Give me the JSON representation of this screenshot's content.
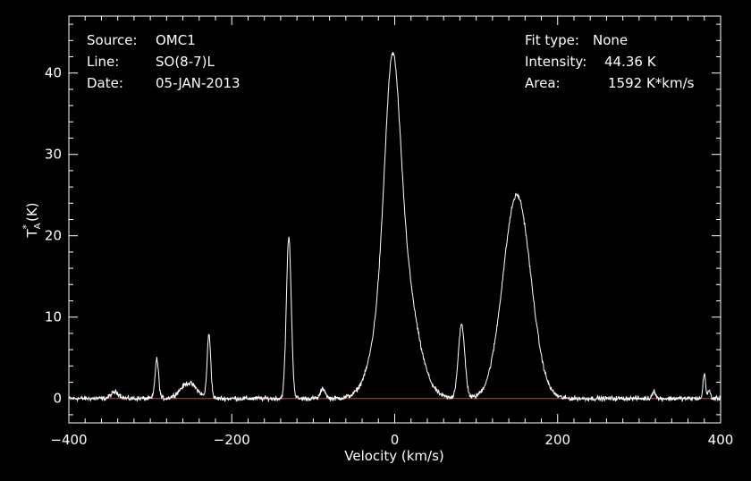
{
  "header": {
    "source_label": "Source:",
    "source_value": "OMC1",
    "line_label": "Line:",
    "line_value": "SO(8-7)L",
    "date_label": "Date:",
    "date_value": "05-JAN-2013",
    "fit_label": "Fit type:",
    "fit_value": "None",
    "intensity_label": "Intensity:",
    "intensity_value": "44.36 K",
    "area_label": "Area:",
    "area_value": "1592 K*km/s"
  },
  "chart_data": {
    "type": "line",
    "xlabel": "Velocity (km/s)",
    "ylabel": "T_A^* (K)",
    "xlim": [
      -400,
      400
    ],
    "ylim": [
      -3,
      47
    ],
    "xticks": [
      -400,
      -200,
      0,
      200,
      400
    ],
    "yticks": [
      0,
      10,
      20,
      30,
      40
    ],
    "baseline": 0,
    "colors": {
      "background": "#000000",
      "axes": "#ffffff",
      "spectrum": "#ffffff",
      "baseline": "#ff2a2a"
    },
    "components": [
      {
        "center": -343,
        "height": 0.8,
        "sigma": 5
      },
      {
        "center": -292,
        "height": 4.8,
        "sigma": 2.2
      },
      {
        "center": -253,
        "height": 1.9,
        "sigma": 10
      },
      {
        "center": -228,
        "height": 7.8,
        "sigma": 2.2
      },
      {
        "center": -130,
        "height": 19.8,
        "sigma": 3
      },
      {
        "center": -88,
        "height": 1.2,
        "sigma": 3
      },
      {
        "center": -3,
        "height": 23,
        "sigma": 9
      },
      {
        "center": 2,
        "height": 20,
        "sigma": 20
      },
      {
        "center": 82,
        "height": 9,
        "sigma": 4
      },
      {
        "center": 150,
        "height": 25,
        "sigma": 17
      },
      {
        "center": 318,
        "height": 1.0,
        "sigma": 2
      },
      {
        "center": 380,
        "height": 3.2,
        "sigma": 1.5
      },
      {
        "center": 386,
        "height": 1.0,
        "sigma": 1.5
      }
    ],
    "noise_rms": 0.25
  }
}
